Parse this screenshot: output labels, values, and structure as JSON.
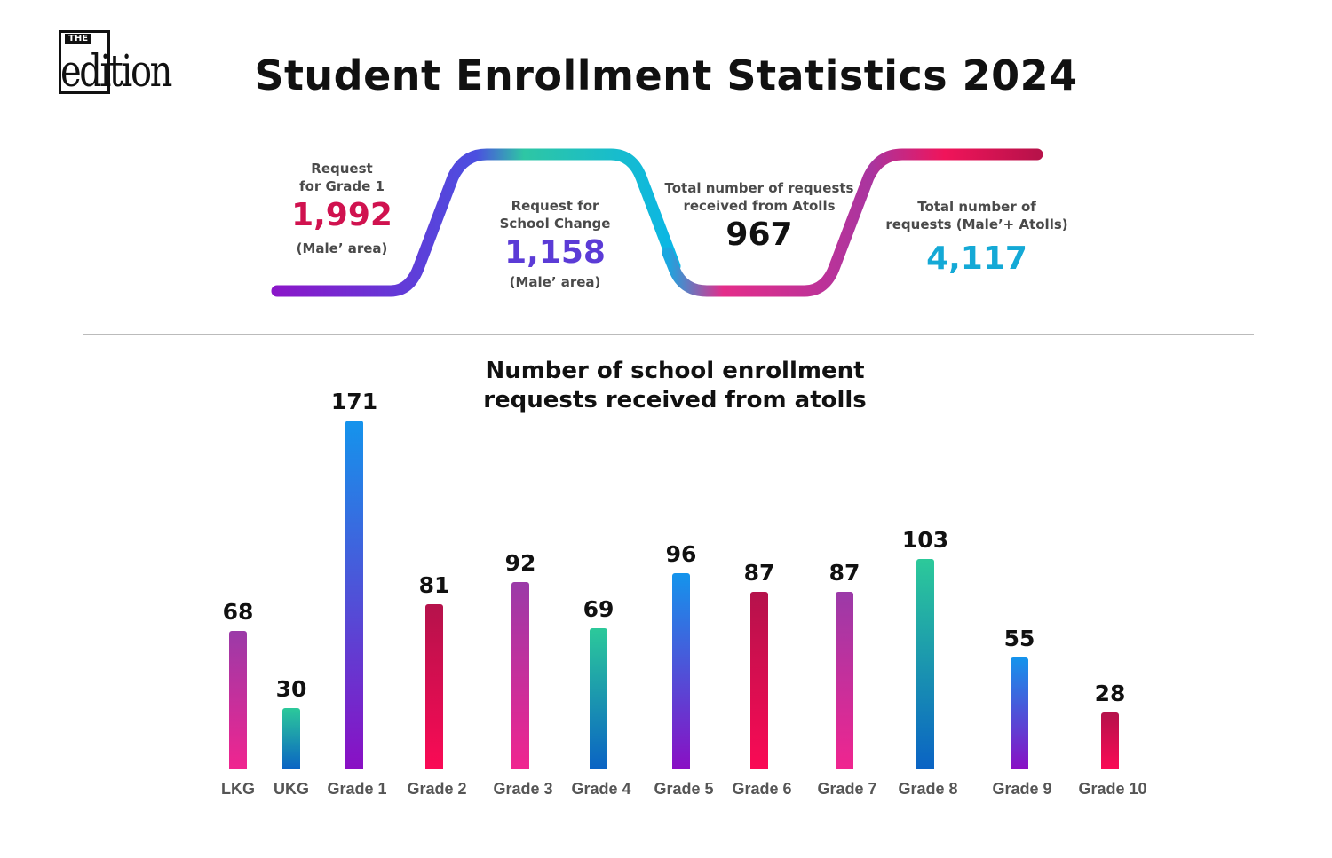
{
  "logo": {
    "the": "THE",
    "word": "edition"
  },
  "title": "Student Enrollment Statistics 2024",
  "stats": [
    {
      "label1": "Request",
      "label2": "for Grade 1",
      "value": "1,992",
      "sub": "(Male’ area)",
      "color": "#d0124f"
    },
    {
      "label1": "Request for",
      "label2": "School Change",
      "value": "1,158",
      "sub": "(Male’ area)",
      "color": "#5b3bd6"
    },
    {
      "label1": "Total number of requests",
      "label2": "received from Atolls",
      "value": "967",
      "sub": "",
      "color": "#111111"
    },
    {
      "label1": "Total number of",
      "label2": "requests (Male’+ Atolls)",
      "value": "4,117",
      "sub": "",
      "color": "#14a9d6"
    }
  ],
  "chart_data": {
    "type": "bar",
    "title": "Number of school enrollment requests received from atolls",
    "title_lines": [
      "Number of school enrollment",
      "requests received from atolls"
    ],
    "categories": [
      "LKG",
      "UKG",
      "Grade 1",
      "Grade 2",
      "Grade 3",
      "Grade 4",
      "Grade 5",
      "Grade 6",
      "Grade 7",
      "Grade 8",
      "Grade 9",
      "Grade 10"
    ],
    "values": [
      68,
      30,
      171,
      81,
      92,
      69,
      96,
      87,
      87,
      103,
      55,
      28
    ],
    "xlabel": "",
    "ylabel": "",
    "ylim": [
      0,
      171
    ],
    "grid": false,
    "legend": "none"
  }
}
